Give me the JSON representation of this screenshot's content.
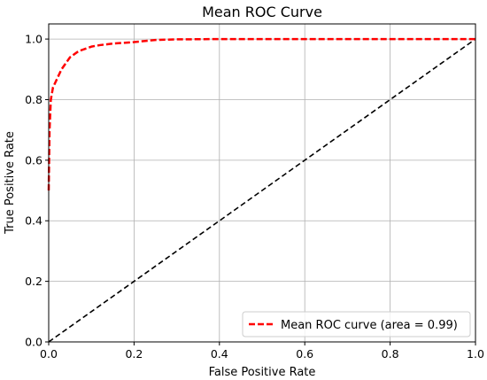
{
  "chart_data": {
    "type": "line",
    "title": "Mean ROC Curve",
    "xlabel": "False Positive Rate",
    "ylabel": "True Positive Rate",
    "xlim": [
      0.0,
      1.0
    ],
    "ylim": [
      0.0,
      1.05
    ],
    "xticks": [
      "0.0",
      "0.2",
      "0.4",
      "0.6",
      "0.8",
      "1.0"
    ],
    "yticks": [
      "0.0",
      "0.2",
      "0.4",
      "0.6",
      "0.8",
      "1.0"
    ],
    "grid": true,
    "legend_position": "lower-right",
    "series": [
      {
        "name": "Mean ROC curve (area = 0.99)",
        "color": "#ff0000",
        "style": "dashed",
        "x": [
          0.0,
          0.002,
          0.005,
          0.01,
          0.02,
          0.03,
          0.05,
          0.07,
          0.1,
          0.12,
          0.15,
          0.2,
          0.25,
          0.3,
          0.4,
          0.5,
          0.6,
          0.7,
          0.8,
          0.9,
          1.0
        ],
        "y": [
          0.5,
          0.7,
          0.8,
          0.84,
          0.87,
          0.9,
          0.94,
          0.96,
          0.975,
          0.98,
          0.985,
          0.99,
          0.997,
          0.999,
          1.0,
          1.0,
          1.0,
          1.0,
          1.0,
          1.0,
          1.0
        ]
      }
    ],
    "reference_line": {
      "color": "#000000",
      "style": "dashed",
      "x": [
        0.0,
        1.0
      ],
      "y": [
        0.0,
        1.0
      ]
    }
  }
}
